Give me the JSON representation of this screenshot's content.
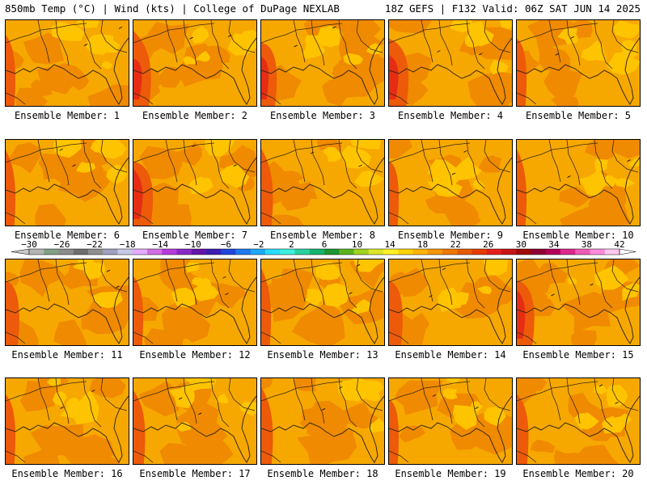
{
  "header": {
    "left": "850mb Temp (°C) | Wind (kts) | College of DuPage NEXLAB",
    "right": "18Z GEFS | F132 Valid: 06Z SAT JUN 14 2025"
  },
  "panels": [
    {
      "label": "Ensemble Member: 1",
      "warm": 0.35,
      "hot": 0.05
    },
    {
      "label": "Ensemble Member: 2",
      "warm": 0.55,
      "hot": 0.25
    },
    {
      "label": "Ensemble Member: 3",
      "warm": 0.55,
      "hot": 0.2
    },
    {
      "label": "Ensemble Member: 4",
      "warm": 0.45,
      "hot": 0.3
    },
    {
      "label": "Ensemble Member: 5",
      "warm": 0.3,
      "hot": 0.05
    },
    {
      "label": "Ensemble Member: 6",
      "warm": 0.45,
      "hot": 0.05
    },
    {
      "label": "Ensemble Member: 7",
      "warm": 0.55,
      "hot": 0.3
    },
    {
      "label": "Ensemble Member: 8",
      "warm": 0.4,
      "hot": 0.1
    },
    {
      "label": "Ensemble Member: 9",
      "warm": 0.4,
      "hot": 0.05
    },
    {
      "label": "Ensemble Member: 10",
      "warm": 0.45,
      "hot": 0.05
    },
    {
      "label": "Ensemble Member: 11",
      "warm": 0.55,
      "hot": 0.15
    },
    {
      "label": "Ensemble Member: 12",
      "warm": 0.45,
      "hot": 0.05
    },
    {
      "label": "Ensemble Member: 13",
      "warm": 0.4,
      "hot": 0.05
    },
    {
      "label": "Ensemble Member: 14",
      "warm": 0.4,
      "hot": 0.15
    },
    {
      "label": "Ensemble Member: 15",
      "warm": 0.5,
      "hot": 0.25
    },
    {
      "label": "Ensemble Member: 16",
      "warm": 0.35,
      "hot": 0.05
    },
    {
      "label": "Ensemble Member: 17",
      "warm": 0.45,
      "hot": 0.1
    },
    {
      "label": "Ensemble Member: 18",
      "warm": 0.4,
      "hot": 0.1
    },
    {
      "label": "Ensemble Member: 19",
      "warm": 0.4,
      "hot": 0.05
    },
    {
      "label": "Ensemble Member: 20",
      "warm": 0.45,
      "hot": 0.1
    }
  ],
  "colorbar": {
    "labels": [
      "−30",
      "−26",
      "−22",
      "−18",
      "−14",
      "−10",
      "−6",
      "−2",
      "2",
      "6",
      "10",
      "14",
      "18",
      "22",
      "26",
      "30",
      "34",
      "38",
      "42"
    ],
    "colors": [
      "#b4b4b4",
      "#7fa084",
      "#8c8c8c",
      "#6e6e6e",
      "#8f8f8f",
      "#a0a0c0",
      "#c8c8e6",
      "#e6aaff",
      "#d26ee6",
      "#b43cdc",
      "#8c28c8",
      "#6414aa",
      "#3c1eb4",
      "#1e46dc",
      "#1e78f0",
      "#1eaaff",
      "#28dcff",
      "#3cf0dc",
      "#28d2a0",
      "#14b46e",
      "#1e9632",
      "#5ab41e",
      "#a0d21e",
      "#dce628",
      "#fff028",
      "#ffd200",
      "#ffb400",
      "#f59600",
      "#f07800",
      "#e65a00",
      "#e63c00",
      "#e61e1e",
      "#c81414",
      "#a00a0a",
      "#8c0032",
      "#b4005a",
      "#dc288c",
      "#f05ab4",
      "#ff8cdc",
      "#ffc8f0"
    ],
    "left_color": "#c8c8c8",
    "right_color": "#ffffff"
  }
}
